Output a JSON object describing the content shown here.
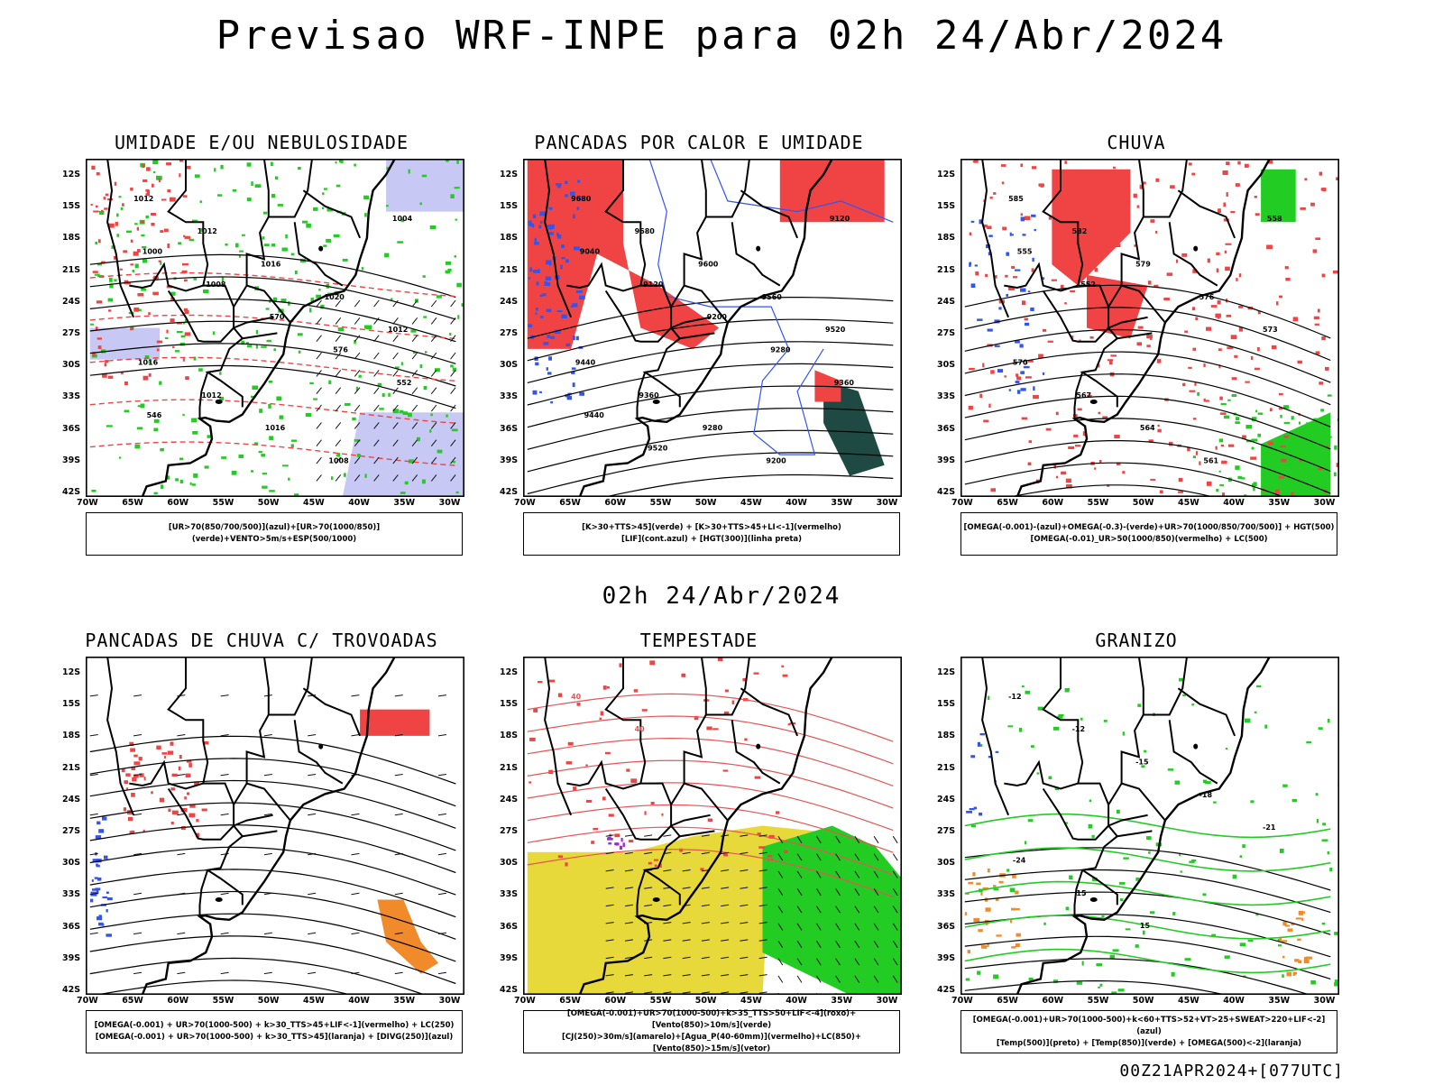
{
  "header": {
    "title": "Previsao WRF-INPE  para 02h 24/Abr/2024",
    "mid_time": "02h 24/Abr/2024",
    "footer": "00Z21APR2024+[077UTC]"
  },
  "axes": {
    "lat_labels": [
      "12S",
      "15S",
      "18S",
      "21S",
      "24S",
      "27S",
      "30S",
      "33S",
      "36S",
      "39S",
      "42S"
    ],
    "lon_labels": [
      "70W",
      "65W",
      "60W",
      "55W",
      "50W",
      "45W",
      "40W",
      "35W",
      "30W"
    ]
  },
  "panels": [
    {
      "title": "UMIDADE E/OU NEBULOSIDADE",
      "caption_lines": [
        "[UR>70(850/700/500)](azul)+[UR>70(1000/850)](verde)+VENTO>5m/s+ESP(500/1000)"
      ],
      "contour_labels": [
        "1012",
        "1012",
        "1016",
        "1020",
        "1012",
        "1016",
        "1012",
        "1016",
        "1008",
        "1004",
        "1000",
        "1008",
        "570",
        "576",
        "552",
        "546"
      ]
    },
    {
      "title": "PANCADAS POR CALOR E UMIDADE",
      "caption_lines": [
        "[K>30+TTS>45](verde) + [K>30+TTS>45+LI<-1](vermelho)",
        "[LIF](cont.azul) + [HGT(300)](linha preta)"
      ],
      "contour_labels": [
        "9680",
        "9680",
        "9600",
        "9560",
        "9520",
        "9440",
        "9360",
        "9280",
        "9200",
        "9120",
        "9040",
        "9120",
        "9200",
        "9280",
        "9360",
        "9440",
        "9520"
      ]
    },
    {
      "title": "CHUVA",
      "caption_lines": [
        "[OMEGA(-0.001)-(azul)+OMEGA(-0.3)-(verde)+UR>70(1000/850/700/500)] + HGT(500)",
        "[OMEGA(-0.01)_UR>50(1000/850)(vermelho) + LC(500)"
      ],
      "contour_labels": [
        "585",
        "582",
        "579",
        "576",
        "573",
        "570",
        "567",
        "564",
        "561",
        "558",
        "555",
        "552"
      ]
    },
    {
      "title": "PANCADAS DE CHUVA C/ TROVOADAS",
      "caption_lines": [
        "[OMEGA(-0.001) + UR>70(1000-500) + k>30_TTS>45+LIF<-1](vermelho) + LC(250)",
        "[OMEGA(-0.001) + UR>70(1000-500) + k>30_TTS>45](laranja) + [DIVG(250)](azul)"
      ],
      "contour_labels": []
    },
    {
      "title": "TEMPESTADE",
      "caption_lines": [
        "[OMEGA(-0.001)+UR>70(1000-500)+k>35_TTS>50+LIF<-4](roxo)+[Vento(850)>10m/s](verde)",
        "[CJ(250)>30m/s](amarelo)+[Agua_P(40-60mm)](vermelho)+LC(850)+[Vento(850)>15m/s](vetor)"
      ],
      "contour_labels": [
        "40",
        "40"
      ]
    },
    {
      "title": "GRANIZO",
      "caption_lines": [
        "[OMEGA(-0.001)+UR>70(1000-500)+k<60+TTS>52+VT>25+SWEAT>220+LIF<-2](azul)",
        "[Temp(500)](preto) + [Temp(850)](verde) + [OMEGA(500)<-2](laranja)"
      ],
      "contour_labels": [
        "-12",
        "-12",
        "-15",
        "-18",
        "-21",
        "-24",
        "15",
        "15"
      ]
    }
  ]
}
